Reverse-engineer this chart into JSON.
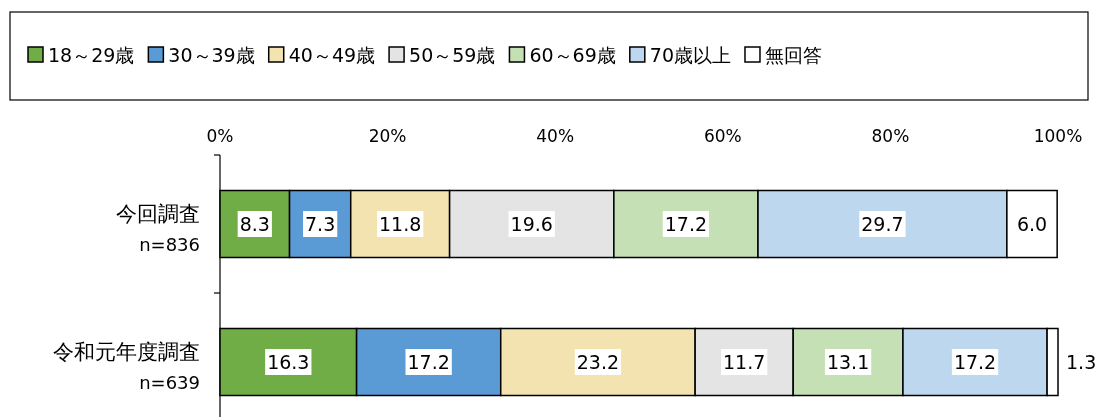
{
  "chart_data": {
    "type": "bar",
    "orientation": "horizontal",
    "stacked": true,
    "legend": "top",
    "grid": false,
    "categories": [
      "今回調査\nn=836",
      "令和元年度調査\nn=639"
    ],
    "xlim": [
      0,
      100
    ],
    "xticks": [
      {
        "value": 0,
        "label": "0%"
      },
      {
        "value": 20,
        "label": "20%"
      },
      {
        "value": 40,
        "label": "40%"
      },
      {
        "value": 60,
        "label": "60%"
      },
      {
        "value": 80,
        "label": "80%"
      },
      {
        "value": 100,
        "label": "100%"
      }
    ],
    "series": [
      {
        "name": "18～29歳",
        "color": "#70ad47",
        "values": [
          8.3,
          16.3
        ],
        "value_labels": [
          "8.3",
          "16.3"
        ]
      },
      {
        "name": "30～39歳",
        "color": "#5b9bd5",
        "values": [
          7.3,
          17.2
        ],
        "value_labels": [
          "7.3",
          "17.2"
        ]
      },
      {
        "name": "40～49歳",
        "color": "#f3e3b0",
        "values": [
          11.8,
          23.2
        ],
        "value_labels": [
          "11.8",
          "23.2"
        ]
      },
      {
        "name": "50～59歳",
        "color": "#e4e4e4",
        "values": [
          19.6,
          11.7
        ],
        "value_labels": [
          "19.6",
          "11.7"
        ]
      },
      {
        "name": "60～69歳",
        "color": "#c5e0b4",
        "values": [
          17.2,
          13.1
        ],
        "value_labels": [
          "17.2",
          "13.1"
        ]
      },
      {
        "name": "70歳以上",
        "color": "#bdd7ee",
        "values": [
          29.7,
          17.2
        ],
        "value_labels": [
          "29.7",
          "17.2"
        ]
      },
      {
        "name": "無回答",
        "color": "#ffffff",
        "values": [
          6.0,
          1.3
        ],
        "value_labels": [
          "6.0",
          "1.3"
        ]
      }
    ]
  }
}
